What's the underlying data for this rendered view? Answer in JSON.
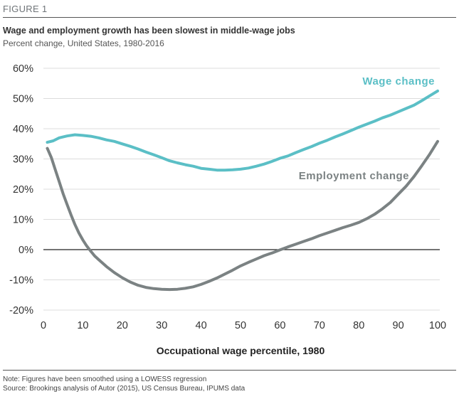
{
  "figure": {
    "label": "FIGURE 1",
    "title": "Wage and employment growth has been slowest in middle-wage jobs",
    "subtitle": "Percent change, United States, 1980-2016",
    "note": "Note: Figures have been smoothed using a LOWESS regression",
    "source": "Source: Brookings analysis of Autor (2015), US Census Bureau, IPUMS data"
  },
  "chart_data": {
    "type": "line",
    "title": "Wage and employment growth has been slowest in middle-wage jobs",
    "xlabel": "Occupational wage percentile, 1980",
    "ylabel": "Percent change",
    "xlim": [
      0,
      100
    ],
    "ylim": [
      -20,
      60
    ],
    "x_ticks": [
      "0",
      "10",
      "20",
      "30",
      "40",
      "50",
      "60",
      "70",
      "80",
      "90",
      "100"
    ],
    "y_ticks": [
      "60%",
      "50%",
      "40%",
      "30%",
      "20%",
      "10%",
      "0%",
      "-10%",
      "-20%"
    ],
    "grid": "horizontal",
    "series": [
      {
        "name": "Wage change",
        "color": "#5bbfc6",
        "x": [
          1,
          2.5,
          4,
          6,
          8,
          10,
          12,
          14,
          16,
          18,
          20,
          22,
          24,
          26,
          28,
          30,
          32,
          34,
          36,
          38,
          40,
          42,
          44,
          46,
          48,
          50,
          52,
          54,
          56,
          58,
          60,
          62,
          64,
          66,
          68,
          70,
          72,
          74,
          76,
          78,
          80,
          82,
          84,
          86,
          88,
          90,
          92,
          94,
          96,
          98,
          100
        ],
        "values": [
          35.5,
          36,
          37,
          37.6,
          38,
          37.8,
          37.5,
          37,
          36.3,
          35.8,
          35,
          34.2,
          33.3,
          32.3,
          31.4,
          30.4,
          29.4,
          28.7,
          28.1,
          27.6,
          26.9,
          26.6,
          26.3,
          26.3,
          26.4,
          26.6,
          27,
          27.6,
          28.3,
          29.2,
          30.2,
          31,
          32.1,
          33.1,
          34.1,
          35.2,
          36.2,
          37.3,
          38.3,
          39.4,
          40.5,
          41.5,
          42.5,
          43.6,
          44.5,
          45.6,
          46.7,
          47.8,
          49.3,
          50.9,
          52.5
        ]
      },
      {
        "name": "Employment change",
        "color": "#7b8283",
        "x": [
          1,
          2,
          3,
          4,
          5,
          6,
          7,
          8,
          9,
          10,
          11,
          12,
          13,
          14,
          16,
          18,
          20,
          22,
          24,
          26,
          28,
          30,
          32,
          34,
          36,
          38,
          40,
          42,
          44,
          46,
          48,
          50,
          52,
          54,
          56,
          58,
          60,
          62,
          64,
          66,
          68,
          70,
          72,
          74,
          76,
          78,
          80,
          82,
          84,
          86,
          88,
          90,
          92,
          94,
          96,
          98,
          100
        ],
        "values": [
          33.5,
          30.5,
          26.5,
          22.5,
          18.5,
          15,
          11.5,
          8.3,
          5.5,
          3.2,
          1.2,
          -0.5,
          -2.1,
          -3.3,
          -5.6,
          -7.6,
          -9.3,
          -10.7,
          -11.8,
          -12.5,
          -12.9,
          -13.1,
          -13.2,
          -13.1,
          -12.8,
          -12.3,
          -11.5,
          -10.5,
          -9.4,
          -8.1,
          -6.8,
          -5.4,
          -4.2,
          -3.1,
          -2,
          -1.1,
          -0.1,
          0.9,
          1.8,
          2.7,
          3.6,
          4.6,
          5.5,
          6.4,
          7.3,
          8.1,
          9,
          10.2,
          11.7,
          13.5,
          15.6,
          18.3,
          21,
          24.2,
          27.8,
          31.6,
          35.8
        ]
      }
    ]
  }
}
